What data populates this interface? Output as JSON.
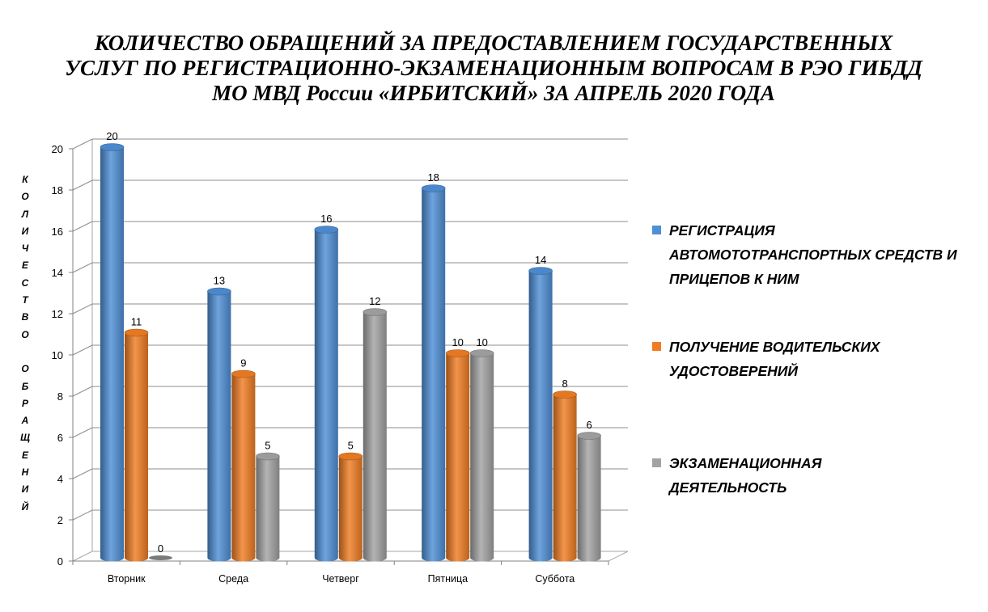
{
  "title_lines": [
    "КОЛИЧЕСТВО ОБРАЩЕНИЙ ЗА ПРЕДОСТАВЛЕНИЕМ ГОСУДАРСТВЕННЫХ",
    "УСЛУГ ПО РЕГИСТРАЦИОННО-ЭКЗАМЕНАЦИОННЫМ ВОПРОСАМ В РЭО ГИБДД",
    "МО МВД России «ИРБИТСКИЙ» ЗА АПРЕЛЬ 2020 ГОДА"
  ],
  "ylabel_chars": [
    "К",
    "О",
    "Л",
    "И",
    "Ч",
    "Е",
    "С",
    "Т",
    "В",
    "О",
    "",
    "О",
    "Б",
    "Р",
    "А",
    "Щ",
    "Е",
    "Н",
    "И",
    "Й"
  ],
  "legend_lines": [
    [
      "РЕГИСТРАЦИЯ",
      "АВТОМОТОТРАНСПОРТНЫХ СРЕДСТВ И",
      "ПРИЦЕПОВ К НИМ"
    ],
    [
      "ПОЛУЧЕНИЕ ВОДИТЕЛЬСКИХ",
      "УДОСТОВЕРЕНИЙ"
    ],
    [
      "ЭКЗАМЕНАЦИОННАЯ",
      "ДЕЯТЕЛЬНОСТЬ"
    ]
  ],
  "chart_data": {
    "type": "bar",
    "title": "КОЛИЧЕСТВО ОБРАЩЕНИЙ ЗА ПРЕДОСТАВЛЕНИЕМ ГОСУДАРСТВЕННЫХ УСЛУГ ПО РЕГИСТРАЦИОННО-ЭКЗАМЕНАЦИОННЫМ ВОПРОСАМ В РЭО ГИБДД МО МВД России «ИРБИТСКИЙ» ЗА АПРЕЛЬ 2020 ГОДА",
    "ylabel": "КОЛИЧЕСТВО ОБРАЩЕНИЙ",
    "xlabel": "",
    "categories": [
      "Вторник",
      "Среда",
      "Четверг",
      "Пятница",
      "Суббота"
    ],
    "series": [
      {
        "name": "РЕГИСТРАЦИЯ АВТОМОТОТРАНСПОРТНЫХ СРЕДСТВ И ПРИЦЕПОВ К НИМ",
        "color": "#4f8fd6",
        "values": [
          20,
          13,
          16,
          18,
          14
        ]
      },
      {
        "name": "ПОЛУЧЕНИЕ ВОДИТЕЛЬСКИХ УДОСТОВЕРЕНИЙ",
        "color": "#f07d24",
        "values": [
          11,
          9,
          5,
          10,
          8
        ]
      },
      {
        "name": "ЭКЗАМЕНАЦИОННАЯ ДЕЯТЕЛЬНОСТЬ",
        "color": "#a3a3a3",
        "values": [
          0,
          5,
          12,
          10,
          6
        ]
      }
    ],
    "ylim": [
      0,
      20
    ],
    "yticks": [
      0,
      2,
      4,
      6,
      8,
      10,
      12,
      14,
      16,
      18,
      20
    ],
    "grid": true,
    "legend": "right"
  }
}
